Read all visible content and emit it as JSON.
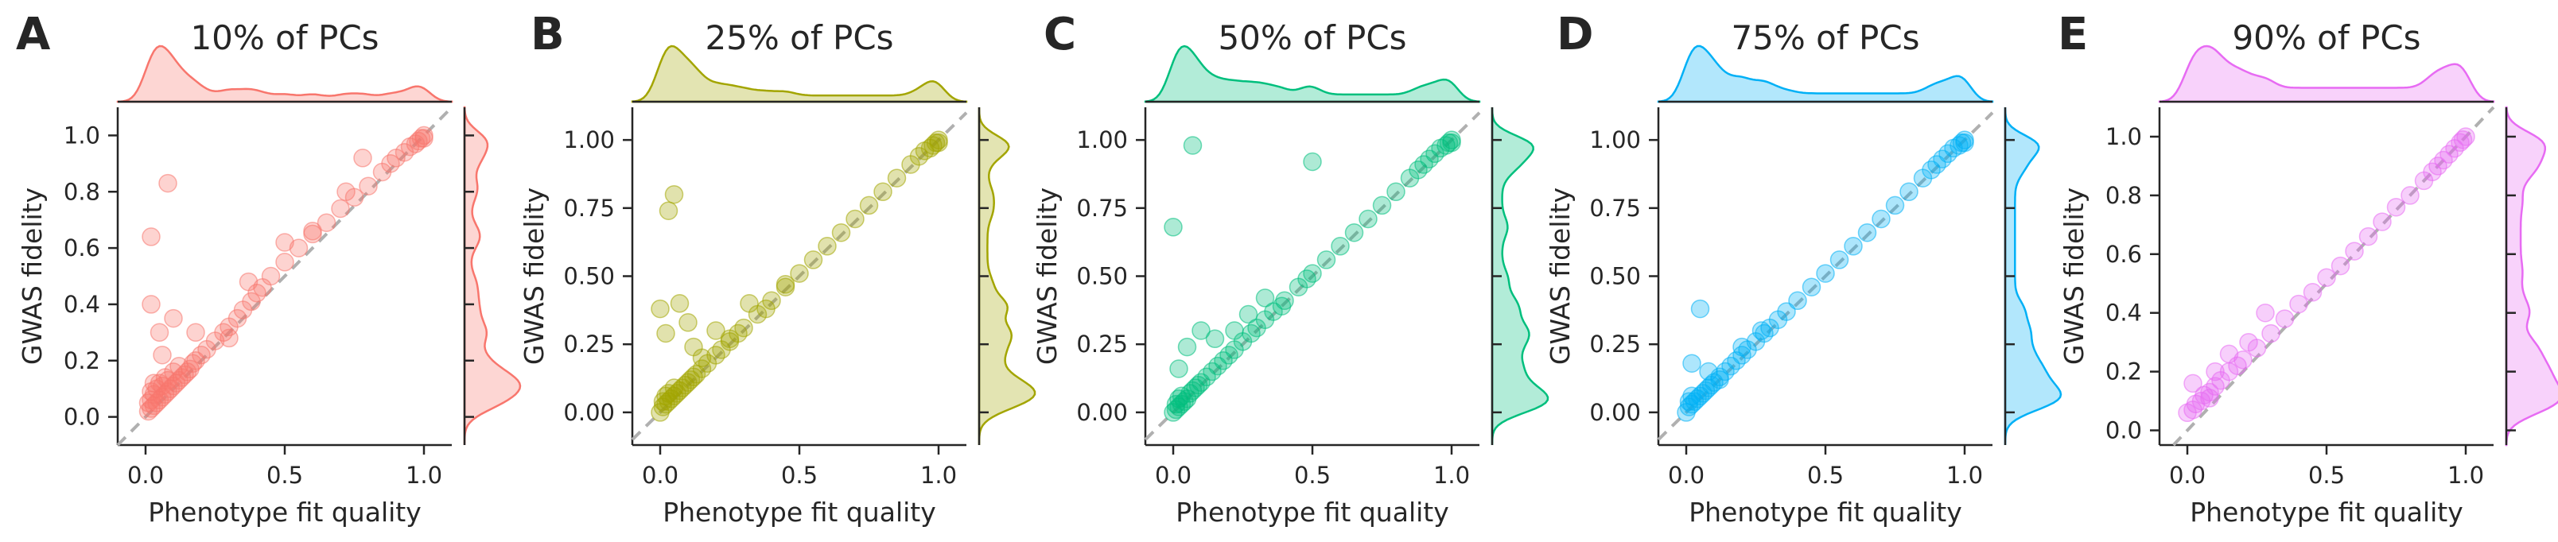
{
  "figure": {
    "panels": [
      {
        "letter": "A",
        "title": "10% of PCs",
        "color": "#F8766D"
      },
      {
        "letter": "B",
        "title": "25% of PCs",
        "color": "#A3A500"
      },
      {
        "letter": "C",
        "title": "50% of PCs",
        "color": "#00BF7D"
      },
      {
        "letter": "D",
        "title": "75% of PCs",
        "color": "#00B0F6"
      },
      {
        "letter": "E",
        "title": "90% of PCs",
        "color": "#E76BF3"
      }
    ]
  },
  "chart_data": [
    {
      "type": "scatter",
      "title": "10% of PCs",
      "xlabel": "Phenotype fit quality",
      "ylabel": "GWAS fidelity",
      "xlim": [
        -0.1,
        1.1
      ],
      "ylim": [
        -0.1,
        1.1
      ],
      "xticks": [
        0.0,
        0.5,
        1.0
      ],
      "xtick_labels": [
        "0.0",
        "0.5",
        "1.0"
      ],
      "yticks": [
        0.0,
        0.2,
        0.4,
        0.6,
        0.8,
        1.0
      ],
      "ytick_labels": [
        "0.0",
        "0.2",
        "0.4",
        "0.6",
        "0.8",
        "1.0"
      ],
      "reference_line": "y = x (dashed gray)",
      "marginal_distributions": "kde on top (x) and right (y)",
      "x": [
        0.01,
        0.01,
        0.02,
        0.02,
        0.02,
        0.03,
        0.03,
        0.03,
        0.04,
        0.04,
        0.05,
        0.05,
        0.06,
        0.06,
        0.07,
        0.07,
        0.08,
        0.08,
        0.09,
        0.1,
        0.1,
        0.11,
        0.12,
        0.12,
        0.13,
        0.14,
        0.15,
        0.16,
        0.17,
        0.18,
        0.2,
        0.22,
        0.25,
        0.28,
        0.3,
        0.33,
        0.35,
        0.38,
        0.4,
        0.42,
        0.45,
        0.5,
        0.55,
        0.6,
        0.65,
        0.7,
        0.75,
        0.8,
        0.85,
        0.88,
        0.9,
        0.93,
        0.95,
        0.97,
        0.98,
        0.99,
        1.0,
        1.0,
        0.02,
        0.02,
        0.08,
        0.05,
        0.1,
        0.06,
        0.18,
        0.3,
        0.37,
        0.5,
        0.6,
        0.72,
        0.78
      ],
      "y": [
        0.02,
        0.05,
        0.03,
        0.06,
        0.09,
        0.04,
        0.08,
        0.12,
        0.05,
        0.1,
        0.06,
        0.12,
        0.07,
        0.11,
        0.08,
        0.14,
        0.09,
        0.13,
        0.1,
        0.11,
        0.16,
        0.12,
        0.13,
        0.18,
        0.14,
        0.15,
        0.16,
        0.17,
        0.19,
        0.2,
        0.22,
        0.24,
        0.27,
        0.3,
        0.32,
        0.35,
        0.38,
        0.41,
        0.44,
        0.46,
        0.5,
        0.55,
        0.6,
        0.65,
        0.69,
        0.74,
        0.78,
        0.82,
        0.87,
        0.9,
        0.92,
        0.94,
        0.96,
        0.97,
        0.98,
        0.99,
        1.0,
        0.99,
        0.64,
        0.4,
        0.83,
        0.3,
        0.35,
        0.22,
        0.3,
        0.28,
        0.48,
        0.62,
        0.66,
        0.8,
        0.92
      ]
    },
    {
      "type": "scatter",
      "title": "25% of PCs",
      "xlabel": "Phenotype fit quality",
      "ylabel": "GWAS fidelity",
      "xlim": [
        -0.1,
        1.1
      ],
      "ylim": [
        -0.12,
        1.12
      ],
      "xticks": [
        0.0,
        0.5,
        1.0
      ],
      "xtick_labels": [
        "0.0",
        "0.5",
        "1.0"
      ],
      "yticks": [
        0.0,
        0.25,
        0.5,
        0.75,
        1.0
      ],
      "ytick_labels": [
        "0.00",
        "0.25",
        "0.50",
        "0.75",
        "1.00"
      ],
      "reference_line": "y = x (dashed gray)",
      "marginal_distributions": "kde on top (x) and right (y)",
      "x": [
        0.0,
        0.01,
        0.01,
        0.02,
        0.02,
        0.03,
        0.03,
        0.04,
        0.05,
        0.05,
        0.06,
        0.07,
        0.08,
        0.09,
        0.1,
        0.11,
        0.12,
        0.13,
        0.15,
        0.17,
        0.2,
        0.22,
        0.25,
        0.28,
        0.3,
        0.35,
        0.4,
        0.45,
        0.5,
        0.55,
        0.6,
        0.65,
        0.7,
        0.75,
        0.8,
        0.85,
        0.9,
        0.93,
        0.95,
        0.97,
        0.98,
        0.99,
        1.0,
        1.0,
        0.0,
        0.02,
        0.03,
        0.05,
        0.07,
        0.1,
        0.12,
        0.15,
        0.2,
        0.25,
        0.32,
        0.38,
        0.45
      ],
      "y": [
        0.0,
        0.02,
        0.04,
        0.03,
        0.06,
        0.04,
        0.07,
        0.05,
        0.06,
        0.09,
        0.07,
        0.08,
        0.09,
        0.1,
        0.11,
        0.12,
        0.13,
        0.14,
        0.16,
        0.18,
        0.21,
        0.23,
        0.26,
        0.29,
        0.31,
        0.36,
        0.41,
        0.46,
        0.51,
        0.56,
        0.61,
        0.66,
        0.71,
        0.76,
        0.81,
        0.86,
        0.91,
        0.94,
        0.96,
        0.97,
        0.98,
        0.99,
        1.0,
        0.99,
        0.38,
        0.29,
        0.74,
        0.8,
        0.4,
        0.33,
        0.24,
        0.2,
        0.3,
        0.27,
        0.4,
        0.38,
        0.47
      ]
    },
    {
      "type": "scatter",
      "title": "50% of PCs",
      "xlabel": "Phenotype fit quality",
      "ylabel": "GWAS fidelity",
      "xlim": [
        -0.1,
        1.1
      ],
      "ylim": [
        -0.12,
        1.12
      ],
      "xticks": [
        0.0,
        0.5,
        1.0
      ],
      "xtick_labels": [
        "0.0",
        "0.5",
        "1.0"
      ],
      "yticks": [
        0.0,
        0.25,
        0.5,
        0.75,
        1.0
      ],
      "ytick_labels": [
        "0.00",
        "0.25",
        "0.50",
        "0.75",
        "1.00"
      ],
      "reference_line": "y = x (dashed gray)",
      "marginal_distributions": "kde on top (x) and right (y)",
      "x": [
        0.0,
        0.01,
        0.01,
        0.02,
        0.02,
        0.03,
        0.03,
        0.04,
        0.05,
        0.06,
        0.07,
        0.08,
        0.09,
        0.1,
        0.12,
        0.14,
        0.16,
        0.18,
        0.2,
        0.22,
        0.25,
        0.28,
        0.3,
        0.33,
        0.36,
        0.4,
        0.45,
        0.5,
        0.55,
        0.6,
        0.65,
        0.7,
        0.75,
        0.8,
        0.85,
        0.88,
        0.9,
        0.92,
        0.94,
        0.96,
        0.98,
        0.99,
        1.0,
        1.0,
        0.0,
        0.07,
        0.5,
        0.02,
        0.05,
        0.1,
        0.15,
        0.22,
        0.33,
        0.39,
        0.48,
        0.27
      ],
      "y": [
        0.0,
        0.01,
        0.03,
        0.02,
        0.05,
        0.03,
        0.06,
        0.04,
        0.05,
        0.07,
        0.08,
        0.09,
        0.1,
        0.11,
        0.13,
        0.15,
        0.17,
        0.19,
        0.21,
        0.23,
        0.26,
        0.29,
        0.31,
        0.34,
        0.37,
        0.41,
        0.46,
        0.51,
        0.56,
        0.61,
        0.66,
        0.71,
        0.76,
        0.81,
        0.86,
        0.89,
        0.91,
        0.93,
        0.95,
        0.97,
        0.98,
        0.99,
        1.0,
        0.99,
        0.68,
        0.98,
        0.92,
        0.16,
        0.24,
        0.3,
        0.27,
        0.3,
        0.42,
        0.39,
        0.49,
        0.36
      ]
    },
    {
      "type": "scatter",
      "title": "75% of PCs",
      "xlabel": "Phenotype fit quality",
      "ylabel": "GWAS fidelity",
      "xlim": [
        -0.1,
        1.1
      ],
      "ylim": [
        -0.12,
        1.12
      ],
      "xticks": [
        0.0,
        0.5,
        1.0
      ],
      "xtick_labels": [
        "0.0",
        "0.5",
        "1.0"
      ],
      "yticks": [
        0.0,
        0.25,
        0.5,
        0.75,
        1.0
      ],
      "ytick_labels": [
        "0.00",
        "0.25",
        "0.50",
        "0.75",
        "1.00"
      ],
      "reference_line": "y = x (dashed gray)",
      "marginal_distributions": "kde on top (x) and right (y)",
      "x": [
        0.0,
        0.01,
        0.01,
        0.02,
        0.02,
        0.03,
        0.04,
        0.05,
        0.06,
        0.07,
        0.08,
        0.09,
        0.1,
        0.12,
        0.14,
        0.16,
        0.18,
        0.2,
        0.22,
        0.25,
        0.28,
        0.3,
        0.33,
        0.36,
        0.4,
        0.45,
        0.5,
        0.55,
        0.6,
        0.65,
        0.7,
        0.75,
        0.8,
        0.85,
        0.88,
        0.9,
        0.92,
        0.94,
        0.96,
        0.98,
        0.99,
        1.0,
        1.0,
        0.05,
        0.02,
        0.08,
        0.12,
        0.2,
        0.27
      ],
      "y": [
        0.0,
        0.02,
        0.04,
        0.03,
        0.06,
        0.04,
        0.05,
        0.06,
        0.07,
        0.08,
        0.09,
        0.1,
        0.11,
        0.13,
        0.15,
        0.17,
        0.19,
        0.21,
        0.23,
        0.26,
        0.29,
        0.31,
        0.34,
        0.37,
        0.41,
        0.46,
        0.51,
        0.56,
        0.61,
        0.66,
        0.71,
        0.76,
        0.81,
        0.86,
        0.89,
        0.91,
        0.93,
        0.95,
        0.97,
        0.98,
        0.99,
        1.0,
        0.99,
        0.38,
        0.18,
        0.15,
        0.12,
        0.24,
        0.3
      ]
    },
    {
      "type": "scatter",
      "title": "90% of PCs",
      "xlabel": "Phenotype fit quality",
      "ylabel": "GWAS fidelity",
      "xlim": [
        -0.1,
        1.1
      ],
      "ylim": [
        -0.05,
        1.1
      ],
      "xticks": [
        0.0,
        0.5,
        1.0
      ],
      "xtick_labels": [
        "0.0",
        "0.5",
        "1.0"
      ],
      "yticks": [
        0.0,
        0.2,
        0.4,
        0.6,
        0.8,
        1.0
      ],
      "ytick_labels": [
        "0.0",
        "0.2",
        "0.4",
        "0.6",
        "0.8",
        "1.0"
      ],
      "reference_line": "y = x (dashed gray)",
      "marginal_distributions": "kde on top (x) and right (y)",
      "x": [
        0.0,
        0.02,
        0.03,
        0.05,
        0.06,
        0.08,
        0.1,
        0.12,
        0.15,
        0.18,
        0.2,
        0.25,
        0.3,
        0.35,
        0.4,
        0.45,
        0.5,
        0.55,
        0.6,
        0.65,
        0.7,
        0.75,
        0.8,
        0.85,
        0.88,
        0.9,
        0.92,
        0.94,
        0.96,
        0.98,
        0.99,
        1.0,
        0.02,
        0.1,
        0.15,
        0.22,
        0.28,
        0.08
      ],
      "y": [
        0.06,
        0.07,
        0.09,
        0.1,
        0.12,
        0.13,
        0.15,
        0.17,
        0.2,
        0.22,
        0.24,
        0.28,
        0.33,
        0.38,
        0.43,
        0.47,
        0.52,
        0.56,
        0.61,
        0.66,
        0.71,
        0.76,
        0.8,
        0.85,
        0.88,
        0.9,
        0.92,
        0.94,
        0.96,
        0.98,
        0.99,
        1.0,
        0.16,
        0.2,
        0.26,
        0.3,
        0.4,
        0.11
      ]
    }
  ]
}
